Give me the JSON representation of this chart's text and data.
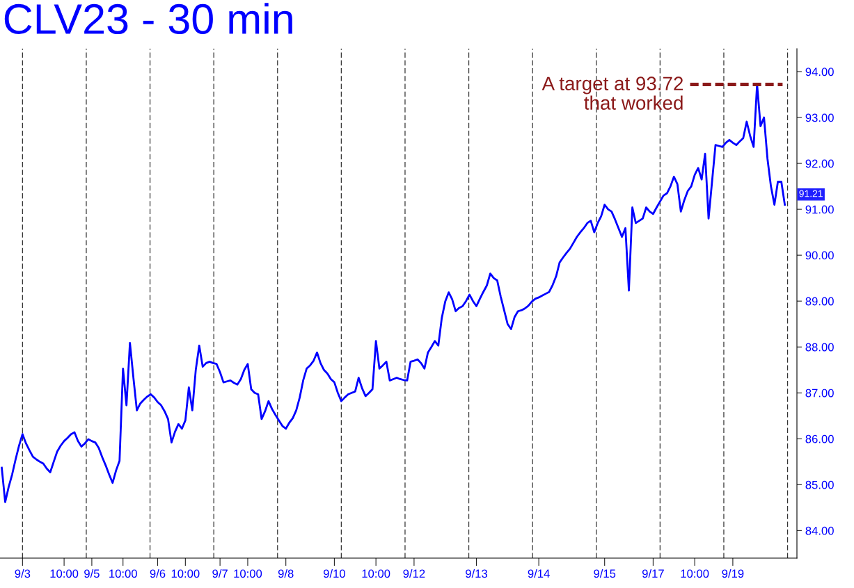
{
  "chart_data": {
    "type": "line",
    "title": "CLV23 - 30 min",
    "categories": [
      null,
      null,
      null,
      null,
      null,
      null,
      "9/3",
      null,
      null,
      null,
      null,
      null,
      null,
      null,
      null,
      null,
      null,
      null,
      "10:00",
      null,
      null,
      null,
      null,
      null,
      null,
      null,
      "9/5",
      null,
      null,
      null,
      null,
      null,
      null,
      null,
      null,
      "10:00",
      null,
      null,
      null,
      null,
      null,
      null,
      null,
      null,
      null,
      "9/6",
      null,
      null,
      null,
      null,
      null,
      null,
      null,
      "10:00",
      null,
      null,
      null,
      null,
      null,
      null,
      null,
      null,
      null,
      "9/7",
      null,
      null,
      null,
      null,
      null,
      null,
      null,
      "10:00",
      null,
      null,
      null,
      null,
      null,
      null,
      null,
      null,
      null,
      null,
      "9/8",
      null,
      null,
      null,
      null,
      null,
      null,
      null,
      null,
      null,
      null,
      null,
      null,
      null,
      "9/10",
      null,
      null,
      null,
      null,
      null,
      null,
      null,
      null,
      null,
      null,
      null,
      "10:00",
      null,
      null,
      null,
      null,
      null,
      null,
      null,
      null,
      null,
      null,
      "9/12",
      null,
      null,
      null,
      null,
      null,
      null,
      null,
      null,
      null,
      null,
      null,
      null,
      null,
      null,
      null,
      null,
      null,
      "9/13",
      null,
      null,
      null,
      null,
      null,
      null,
      null,
      null,
      null,
      null,
      null,
      null,
      null,
      null,
      null,
      null,
      null,
      "9/14",
      null,
      null,
      null,
      null,
      null,
      null,
      null,
      null,
      null,
      null,
      null,
      null,
      null,
      null,
      null,
      null,
      null,
      null,
      "9/15",
      null,
      null,
      null,
      null,
      null,
      null,
      null,
      null,
      null,
      null,
      null,
      null,
      null,
      "9/17",
      null,
      null,
      null,
      null,
      null,
      null,
      null,
      null,
      null,
      null,
      null,
      "10:00",
      null,
      null,
      null,
      null,
      null,
      null,
      null,
      null,
      null,
      null,
      "9/19",
      null,
      null,
      null,
      null,
      null,
      null,
      null,
      null,
      null,
      null,
      null,
      null,
      null,
      null,
      null
    ],
    "series": [
      {
        "color": "#0000ff",
        "values": [
          85.37,
          84.62,
          84.95,
          85.22,
          85.55,
          85.85,
          86.1,
          85.9,
          85.75,
          85.61,
          85.55,
          85.5,
          85.46,
          85.35,
          85.27,
          85.5,
          85.72,
          85.85,
          85.95,
          86.02,
          86.1,
          86.14,
          85.95,
          85.83,
          85.9,
          85.99,
          85.95,
          85.92,
          85.8,
          85.6,
          85.42,
          85.22,
          85.04,
          85.31,
          85.52,
          87.53,
          86.73,
          88.09,
          87.33,
          86.62,
          86.77,
          86.85,
          86.92,
          86.97,
          86.9,
          86.8,
          86.73,
          86.6,
          86.43,
          85.92,
          86.15,
          86.32,
          86.22,
          86.4,
          87.12,
          86.62,
          87.5,
          88.03,
          87.57,
          87.65,
          87.68,
          87.65,
          87.63,
          87.45,
          87.23,
          87.25,
          87.27,
          87.22,
          87.18,
          87.3,
          87.5,
          87.63,
          87.08,
          87.0,
          86.97,
          86.43,
          86.6,
          86.82,
          86.65,
          86.52,
          86.4,
          86.28,
          86.22,
          86.35,
          86.45,
          86.62,
          86.9,
          87.27,
          87.53,
          87.6,
          87.7,
          87.88,
          87.65,
          87.5,
          87.42,
          87.3,
          87.23,
          87.0,
          86.82,
          86.9,
          86.97,
          87.0,
          87.03,
          87.33,
          87.1,
          86.93,
          87.0,
          87.08,
          88.13,
          87.53,
          87.6,
          87.68,
          87.27,
          87.3,
          87.33,
          87.3,
          87.28,
          87.27,
          87.68,
          87.7,
          87.73,
          87.65,
          87.53,
          87.88,
          88.0,
          88.13,
          88.03,
          88.63,
          88.99,
          89.19,
          89.04,
          88.78,
          88.85,
          88.89,
          89.0,
          89.14,
          89.0,
          88.89,
          89.05,
          89.2,
          89.34,
          89.6,
          89.5,
          89.45,
          89.1,
          88.8,
          88.5,
          88.39,
          88.65,
          88.78,
          88.8,
          88.84,
          88.9,
          88.99,
          89.05,
          89.08,
          89.12,
          89.16,
          89.2,
          89.35,
          89.54,
          89.84,
          89.95,
          90.05,
          90.14,
          90.27,
          90.4,
          90.5,
          90.59,
          90.7,
          90.75,
          90.5,
          90.7,
          90.85,
          91.1,
          91.0,
          90.95,
          90.78,
          90.59,
          90.4,
          90.59,
          89.23,
          91.04,
          90.7,
          90.75,
          90.8,
          91.04,
          90.95,
          90.9,
          91.04,
          91.17,
          91.3,
          91.35,
          91.5,
          91.71,
          91.55,
          90.95,
          91.2,
          91.4,
          91.5,
          91.75,
          91.9,
          91.65,
          92.21,
          90.8,
          91.6,
          92.4,
          92.38,
          92.36,
          92.45,
          92.51,
          92.45,
          92.4,
          92.48,
          92.55,
          92.91,
          92.6,
          92.36,
          93.72,
          92.81,
          93.0,
          92.1,
          91.5,
          91.1,
          91.6,
          91.6,
          91.1
        ]
      }
    ],
    "ylim": [
      83.4,
      94.5
    ],
    "yticks": [
      {
        "value": 84,
        "label": "84.00"
      },
      {
        "value": 85,
        "label": "85.00"
      },
      {
        "value": 86,
        "label": "86.00"
      },
      {
        "value": 87,
        "label": "87.00"
      },
      {
        "value": 88,
        "label": "88.00"
      },
      {
        "value": 89,
        "label": "89.00"
      },
      {
        "value": 90,
        "label": "90.00"
      },
      {
        "value": 91,
        "label": "91.00"
      },
      {
        "value": 92,
        "label": "92.00"
      },
      {
        "value": 93,
        "label": "93.00"
      },
      {
        "value": 94,
        "label": "94.00"
      }
    ],
    "ref_lines": [
      {
        "axis": "y",
        "value": 93.72,
        "label": "A target at 93.72\nthat worked",
        "color": "#8b1a1a",
        "line_style": "dashed"
      }
    ],
    "annotations": [
      "91.21"
    ],
    "grid": false,
    "legend": false
  }
}
